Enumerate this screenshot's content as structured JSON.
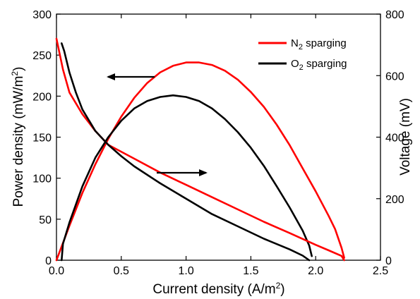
{
  "chart_data": {
    "type": "line",
    "xlabel": "Current density (A/m²)",
    "ylabel": "Power density (mW/m²)",
    "y2label": "Voltage (mV)",
    "xlim": [
      0,
      2.5
    ],
    "ylim": [
      0,
      300
    ],
    "y2lim": [
      0,
      800
    ],
    "xticks": [
      "0.0",
      "0.5",
      "1.0",
      "1.5",
      "2.0",
      "2.5"
    ],
    "yticks": [
      "0",
      "50",
      "100",
      "150",
      "200",
      "250",
      "300"
    ],
    "y2ticks": [
      "0",
      "200",
      "400",
      "600",
      "800"
    ],
    "legend_position": "top-right",
    "series": [
      {
        "name": "N₂ sparging",
        "color": "#ff0000",
        "axis": "left",
        "points": [
          [
            0.0,
            0
          ],
          [
            0.1,
            42
          ],
          [
            0.2,
            82
          ],
          [
            0.3,
            117
          ],
          [
            0.4,
            148
          ],
          [
            0.5,
            175
          ],
          [
            0.6,
            198
          ],
          [
            0.7,
            216
          ],
          [
            0.8,
            229
          ],
          [
            0.9,
            237
          ],
          [
            1.0,
            241
          ],
          [
            1.1,
            241
          ],
          [
            1.2,
            238
          ],
          [
            1.3,
            231
          ],
          [
            1.4,
            220
          ],
          [
            1.5,
            205
          ],
          [
            1.6,
            187
          ],
          [
            1.7,
            165
          ],
          [
            1.8,
            140
          ],
          [
            1.9,
            112
          ],
          [
            2.0,
            84
          ],
          [
            2.1,
            54
          ],
          [
            2.15,
            38
          ],
          [
            2.2,
            15
          ],
          [
            2.22,
            3
          ]
        ]
      },
      {
        "name": "O₂ sparging",
        "color": "#000000",
        "axis": "left",
        "points": [
          [
            0.04,
            0
          ],
          [
            0.05,
            20
          ],
          [
            0.1,
            46
          ],
          [
            0.2,
            90
          ],
          [
            0.3,
            125
          ],
          [
            0.4,
            150
          ],
          [
            0.5,
            170
          ],
          [
            0.6,
            185
          ],
          [
            0.7,
            194
          ],
          [
            0.8,
            199
          ],
          [
            0.9,
            201
          ],
          [
            1.0,
            199
          ],
          [
            1.1,
            194
          ],
          [
            1.2,
            185
          ],
          [
            1.3,
            172
          ],
          [
            1.4,
            156
          ],
          [
            1.5,
            137
          ],
          [
            1.6,
            115
          ],
          [
            1.7,
            90
          ],
          [
            1.8,
            64
          ],
          [
            1.9,
            36
          ],
          [
            1.95,
            18
          ],
          [
            1.97,
            5
          ]
        ]
      },
      {
        "name": "N₂ sparging",
        "color": "#ff0000",
        "axis": "right",
        "points": [
          [
            0.0,
            720
          ],
          [
            0.05,
            620
          ],
          [
            0.1,
            545
          ],
          [
            0.2,
            475
          ],
          [
            0.3,
            420
          ],
          [
            0.4,
            375
          ],
          [
            0.6,
            330
          ],
          [
            0.8,
            285
          ],
          [
            1.0,
            245
          ],
          [
            1.2,
            205
          ],
          [
            1.4,
            165
          ],
          [
            1.6,
            125
          ],
          [
            1.8,
            88
          ],
          [
            2.0,
            50
          ],
          [
            2.1,
            32
          ],
          [
            2.2,
            14
          ],
          [
            2.22,
            0
          ]
        ]
      },
      {
        "name": "O₂ sparging",
        "color": "#000000",
        "axis": "right",
        "points": [
          [
            0.04,
            705
          ],
          [
            0.06,
            680
          ],
          [
            0.1,
            610
          ],
          [
            0.15,
            545
          ],
          [
            0.2,
            490
          ],
          [
            0.3,
            420
          ],
          [
            0.4,
            375
          ],
          [
            0.5,
            338
          ],
          [
            0.6,
            305
          ],
          [
            0.8,
            250
          ],
          [
            1.0,
            200
          ],
          [
            1.2,
            150
          ],
          [
            1.4,
            110
          ],
          [
            1.6,
            70
          ],
          [
            1.8,
            35
          ],
          [
            1.9,
            15
          ],
          [
            1.95,
            0
          ]
        ]
      }
    ],
    "legend": [
      {
        "label": "N",
        "sub": "2",
        "rest": " sparging",
        "color": "#ff0000"
      },
      {
        "label": "O",
        "sub": "2",
        "rest": " sparging",
        "color": "#000000"
      }
    ],
    "annotations": [
      "left-arrow",
      "right-arrow"
    ]
  }
}
